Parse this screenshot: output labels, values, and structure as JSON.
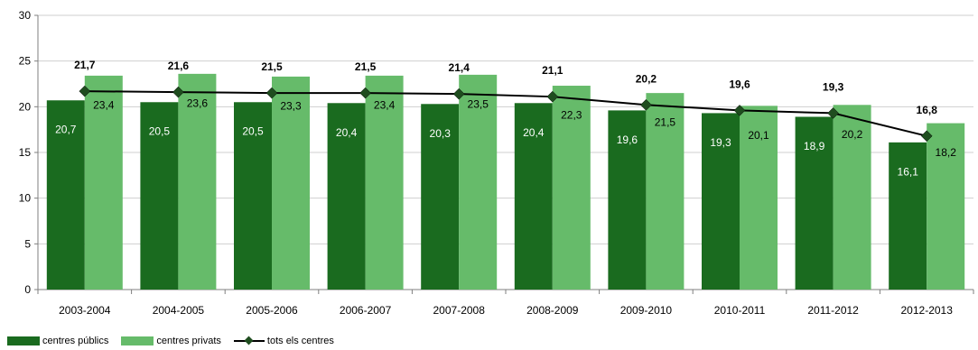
{
  "chart_data": {
    "type": "bar",
    "categories": [
      "2003-2004",
      "2004-2005",
      "2005-2006",
      "2006-2007",
      "2007-2008",
      "2008-2009",
      "2009-2010",
      "2010-2011",
      "2011-2012",
      "2012-2013"
    ],
    "series": [
      {
        "name": "centres públics",
        "type": "bar",
        "color": "#1a6b1f",
        "values": [
          20.7,
          20.5,
          20.5,
          20.4,
          20.3,
          20.4,
          19.6,
          19.3,
          18.9,
          16.1
        ],
        "labels": [
          "20,7",
          "20,5",
          "20,5",
          "20,4",
          "20,3",
          "20,4",
          "19,6",
          "19,3",
          "18,9",
          "16,1"
        ]
      },
      {
        "name": "centres privats",
        "type": "bar",
        "color": "#66bb6a",
        "values": [
          23.4,
          23.6,
          23.3,
          23.4,
          23.5,
          22.3,
          21.5,
          20.1,
          20.2,
          18.2
        ],
        "labels": [
          "23,4",
          "23,6",
          "23,3",
          "23,4",
          "23,5",
          "22,3",
          "21,5",
          "20,1",
          "20,2",
          "18,2"
        ]
      },
      {
        "name": "tots els centres",
        "type": "line",
        "color": "#000000",
        "marker_color": "#1f4d1f",
        "values": [
          21.7,
          21.6,
          21.5,
          21.5,
          21.4,
          21.1,
          20.2,
          19.6,
          19.3,
          16.8
        ],
        "labels": [
          "21,7",
          "21,6",
          "21,5",
          "21,5",
          "21,4",
          "21,1",
          "20,2",
          "19,6",
          "19,3",
          "16,8"
        ]
      }
    ],
    "ylim": [
      0,
      30
    ],
    "yticks": [
      "0",
      "5",
      "10",
      "15",
      "20",
      "25",
      "30"
    ],
    "ytick_values": [
      0,
      5,
      10,
      15,
      20,
      25,
      30
    ],
    "grid": true,
    "legend_position": "bottom-left",
    "title": "",
    "xlabel": "",
    "ylabel": ""
  },
  "legend": {
    "public_label": "centres públics",
    "private_label": "centres privats",
    "total_label": "tots els centres"
  }
}
